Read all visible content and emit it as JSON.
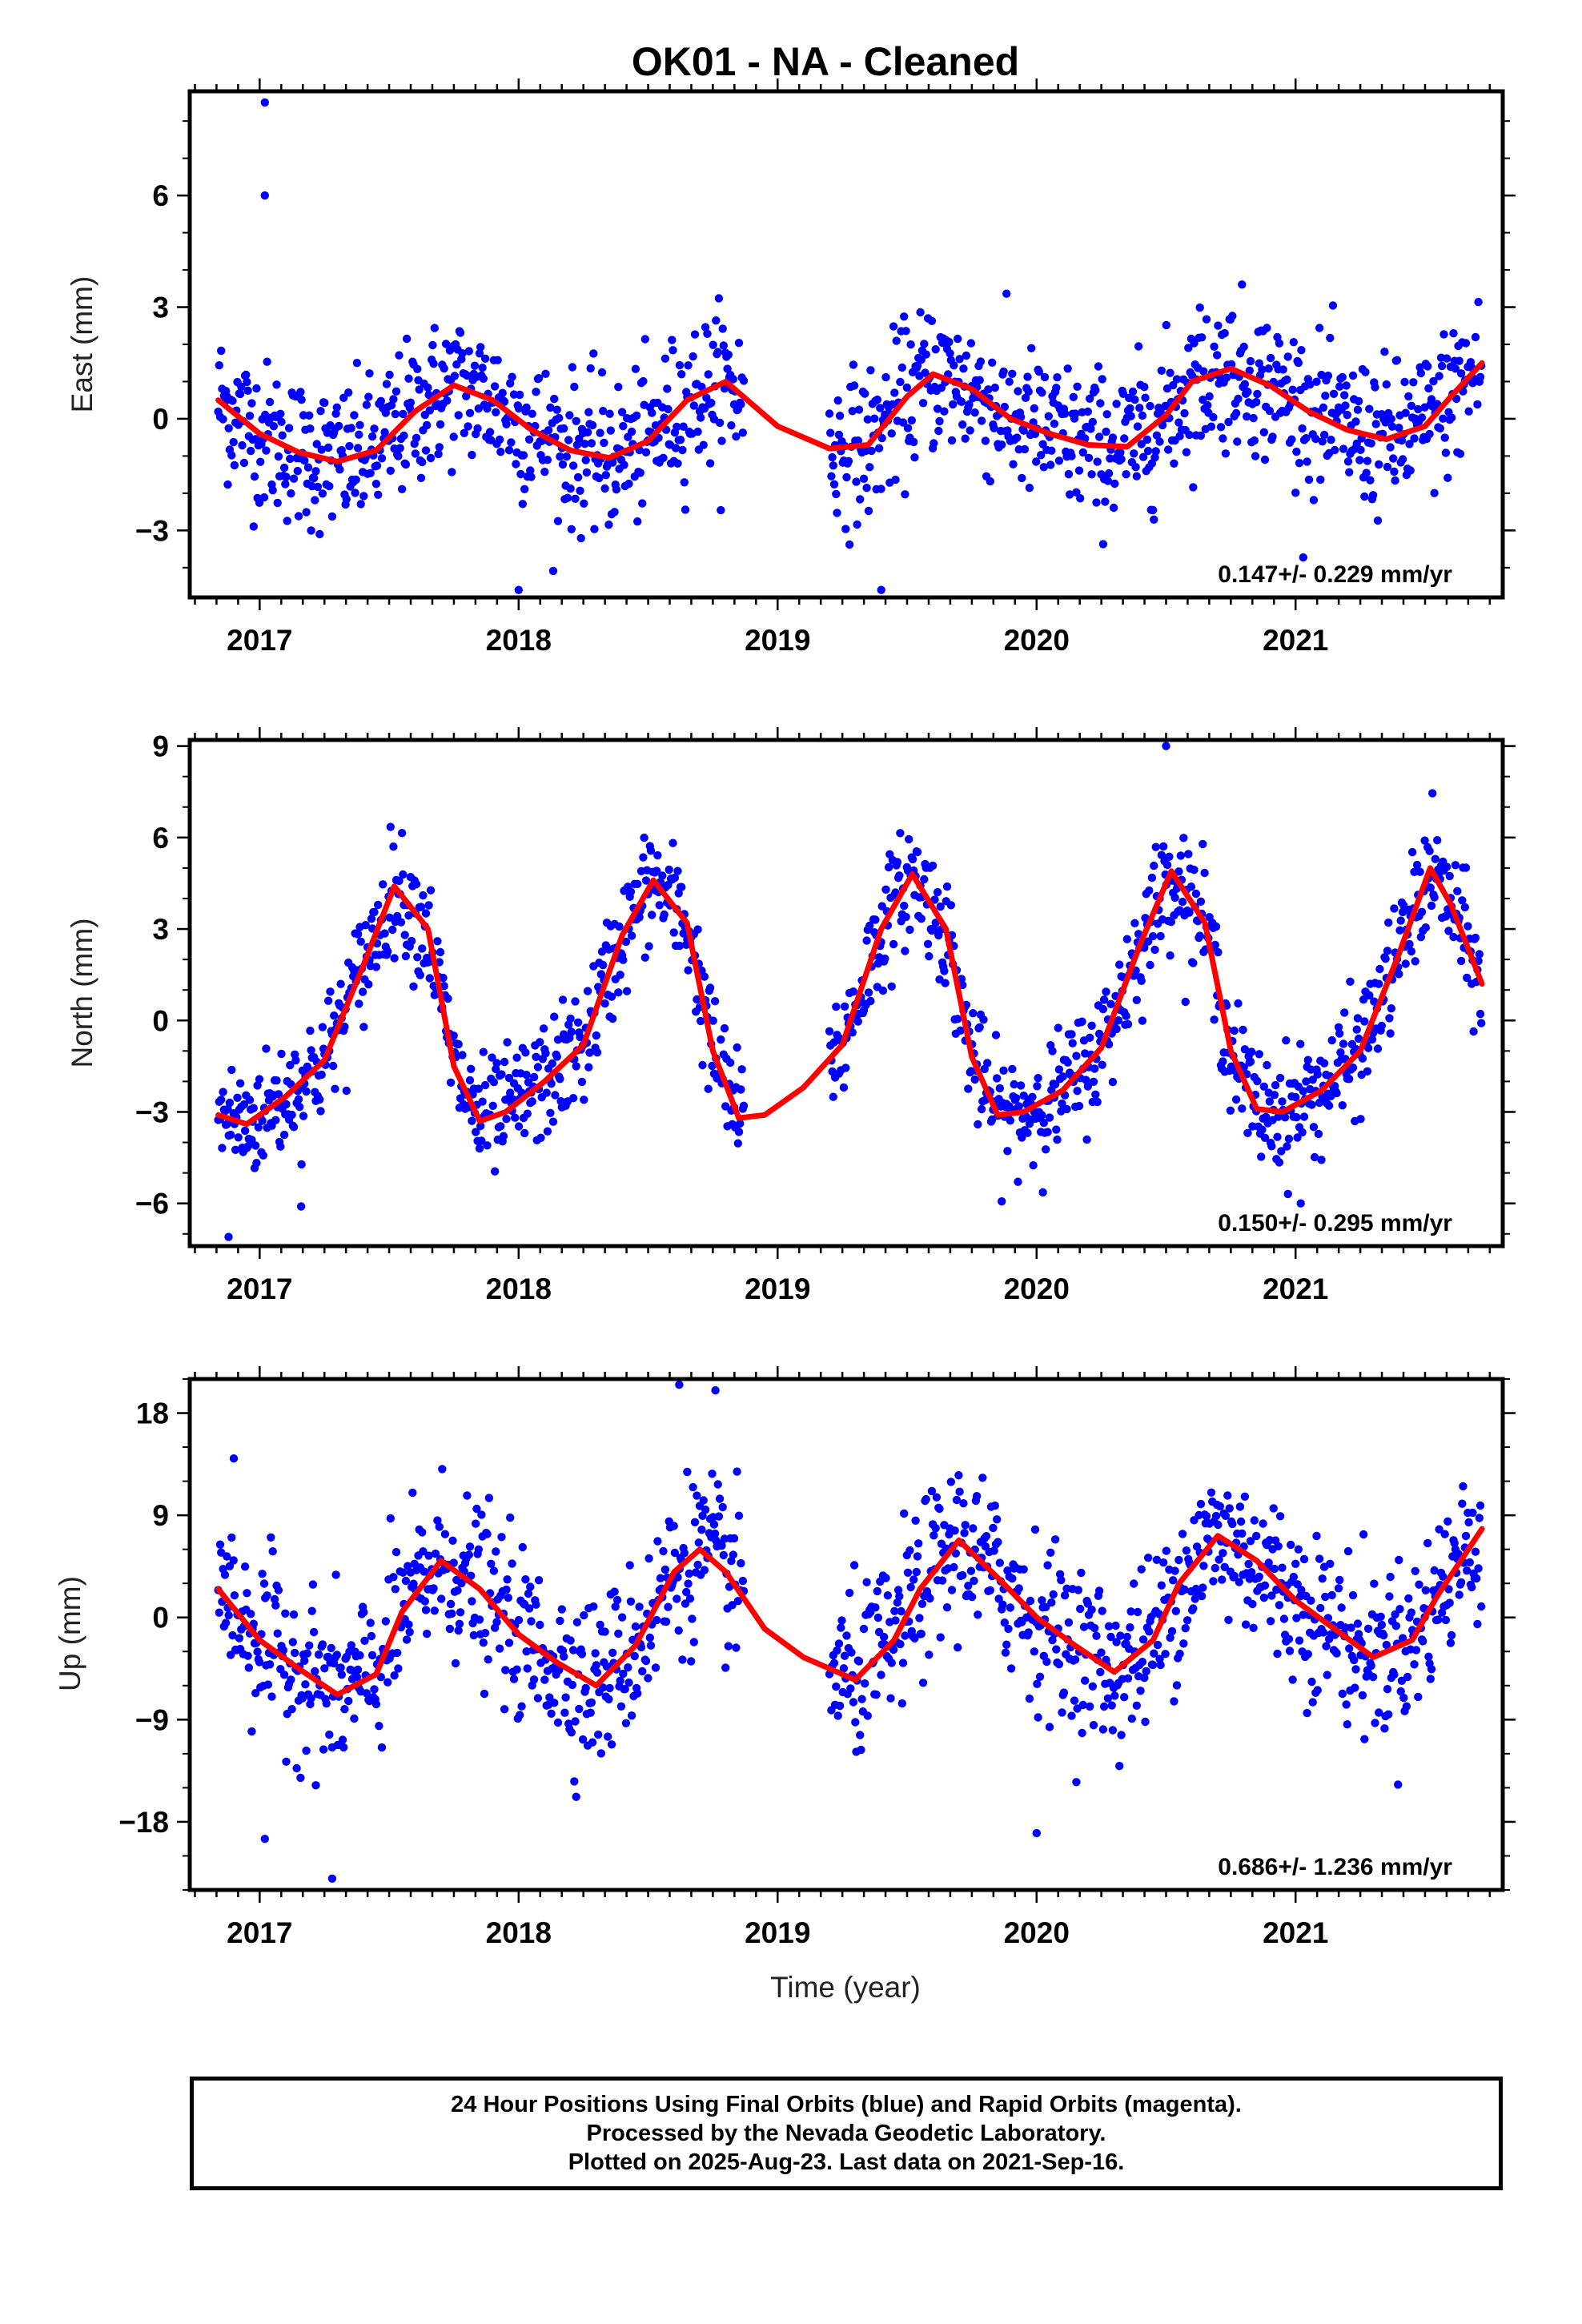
{
  "title": "OK01  - NA - Cleaned",
  "x_axis_label": "Time (year)",
  "footer": {
    "line1": "24 Hour Positions Using Final Orbits (blue) and Rapid Orbits (magenta).",
    "line2": "Processed by the Nevada Geodetic Laboratory.",
    "line3": "Plotted on 2025-Aug-23. Last data on 2021-Sep-16."
  },
  "colors": {
    "points": "#0000ff",
    "fit": "#ff0000",
    "frame": "#000000"
  },
  "chart_data": [
    {
      "type": "scatter",
      "component": "east",
      "ylabel": "East (mm)",
      "xlim": [
        2016.73,
        2021.8
      ],
      "ylim": [
        -4.8,
        8.8
      ],
      "xticks": [
        "2017",
        "2018",
        "2019",
        "2020",
        "2021"
      ],
      "yticks": [
        "-3",
        "0",
        "3",
        "6"
      ],
      "rate_label": "0.147+/- 0.229 mm/yr",
      "fit_series": {
        "x": [
          2016.84,
          2017.0,
          2017.15,
          2017.3,
          2017.45,
          2017.6,
          2017.75,
          2017.9,
          2018.05,
          2018.2,
          2018.35,
          2018.5,
          2018.65,
          2018.8,
          2019.0,
          2019.2,
          2019.35,
          2019.5,
          2019.6,
          2019.75,
          2019.9,
          2020.05,
          2020.2,
          2020.35,
          2020.5,
          2020.6,
          2020.75,
          2020.9,
          2021.05,
          2021.2,
          2021.35,
          2021.5,
          2021.6,
          2021.72
        ],
        "y": [
          0.5,
          -0.4,
          -0.9,
          -1.15,
          -0.85,
          0.2,
          0.9,
          0.5,
          -0.3,
          -0.85,
          -1.05,
          -0.6,
          0.5,
          1.0,
          -0.2,
          -0.8,
          -0.7,
          0.6,
          1.2,
          0.8,
          0.0,
          -0.4,
          -0.7,
          -0.75,
          0.1,
          1.0,
          1.35,
          0.9,
          0.2,
          -0.3,
          -0.55,
          -0.2,
          0.6,
          1.5
        ]
      },
      "observation_summary": {
        "segments": [
          [
            2016.84,
            2018.87
          ],
          [
            2019.2,
            2021.72
          ]
        ],
        "noise_sd_mm": 1.0,
        "outliers": [
          {
            "x": 2017.02,
            "y": 8.5
          },
          {
            "x": 2017.02,
            "y": 6.0
          },
          {
            "x": 2018.0,
            "y": -4.6
          },
          {
            "x": 2019.4,
            "y": -4.6
          }
        ]
      }
    },
    {
      "type": "scatter",
      "component": "north",
      "ylabel": "North (mm)",
      "xlim": [
        2016.73,
        2021.8
      ],
      "ylim": [
        -7.4,
        9.2
      ],
      "xticks": [
        "2017",
        "2018",
        "2019",
        "2020",
        "2021"
      ],
      "yticks": [
        "-6",
        "-3",
        "0",
        "3",
        "6",
        "9"
      ],
      "rate_label": "0.150+/- 0.295 mm/yr",
      "fit_series": {
        "x": [
          2016.84,
          2016.95,
          2017.1,
          2017.25,
          2017.4,
          2017.52,
          2017.65,
          2017.75,
          2017.85,
          2017.95,
          2018.1,
          2018.25,
          2018.4,
          2018.52,
          2018.65,
          2018.75,
          2018.85,
          2018.95,
          2019.1,
          2019.25,
          2019.4,
          2019.52,
          2019.65,
          2019.75,
          2019.85,
          2019.95,
          2020.1,
          2020.25,
          2020.4,
          2020.52,
          2020.65,
          2020.75,
          2020.85,
          2020.95,
          2021.1,
          2021.25,
          2021.4,
          2021.52,
          2021.6,
          2021.72
        ],
        "y": [
          -3.1,
          -3.4,
          -2.5,
          -1.3,
          1.8,
          4.4,
          3.0,
          -1.5,
          -3.3,
          -3.0,
          -2.0,
          -0.8,
          2.8,
          4.6,
          3.2,
          -1.0,
          -3.2,
          -3.1,
          -2.2,
          -0.8,
          3.0,
          4.8,
          3.0,
          -1.2,
          -3.1,
          -3.0,
          -2.3,
          -0.9,
          2.5,
          4.9,
          3.2,
          -1.0,
          -2.9,
          -3.0,
          -2.3,
          -1.0,
          2.2,
          5.0,
          3.8,
          1.2
        ]
      },
      "observation_summary": {
        "segments": [
          [
            2016.84,
            2018.87
          ],
          [
            2019.2,
            2021.72
          ]
        ],
        "noise_sd_mm": 0.95,
        "outliers": [
          {
            "x": 2016.88,
            "y": -7.1
          },
          {
            "x": 2017.16,
            "y": -6.1
          },
          {
            "x": 2020.5,
            "y": 9.0
          },
          {
            "x": 2021.02,
            "y": -6.0
          }
        ]
      }
    },
    {
      "type": "scatter",
      "component": "up",
      "ylabel": "Up (mm)",
      "xlim": [
        2016.73,
        2021.8
      ],
      "ylim": [
        -24,
        21
      ],
      "xticks": [
        "2017",
        "2018",
        "2019",
        "2020",
        "2021"
      ],
      "yticks": [
        "-18",
        "-9",
        "0",
        "9",
        "18"
      ],
      "rate_label": "0.686+/- 1.236 mm/yr",
      "fit_series": {
        "x": [
          2016.84,
          2017.0,
          2017.15,
          2017.3,
          2017.45,
          2017.55,
          2017.7,
          2017.85,
          2018.0,
          2018.15,
          2018.3,
          2018.45,
          2018.6,
          2018.7,
          2018.8,
          2018.95,
          2019.1,
          2019.3,
          2019.45,
          2019.55,
          2019.7,
          2019.85,
          2020.0,
          2020.15,
          2020.3,
          2020.45,
          2020.55,
          2020.7,
          2020.85,
          2021.0,
          2021.15,
          2021.3,
          2021.45,
          2021.55,
          2021.72
        ],
        "y": [
          2.5,
          -2.0,
          -4.5,
          -6.8,
          -5.0,
          0.5,
          5.0,
          2.5,
          -1.5,
          -4.0,
          -6.0,
          -2.5,
          4.0,
          6.0,
          4.0,
          -1.0,
          -3.5,
          -5.5,
          -2.0,
          2.5,
          6.8,
          3.5,
          0.0,
          -2.5,
          -4.8,
          -2.0,
          3.0,
          7.2,
          5.0,
          1.5,
          -1.0,
          -3.5,
          -2.0,
          2.0,
          7.8
        ]
      },
      "observation_summary": {
        "segments": [
          [
            2016.84,
            2018.87
          ],
          [
            2019.2,
            2021.72
          ]
        ],
        "noise_sd_mm": 3.6,
        "outliers": [
          {
            "x": 2017.28,
            "y": -23.0
          },
          {
            "x": 2016.9,
            "y": 14.0
          },
          {
            "x": 2018.62,
            "y": 20.5
          },
          {
            "x": 2018.76,
            "y": 20.0
          },
          {
            "x": 2017.02,
            "y": -19.5
          },
          {
            "x": 2020.0,
            "y": -19.0
          }
        ]
      }
    }
  ]
}
